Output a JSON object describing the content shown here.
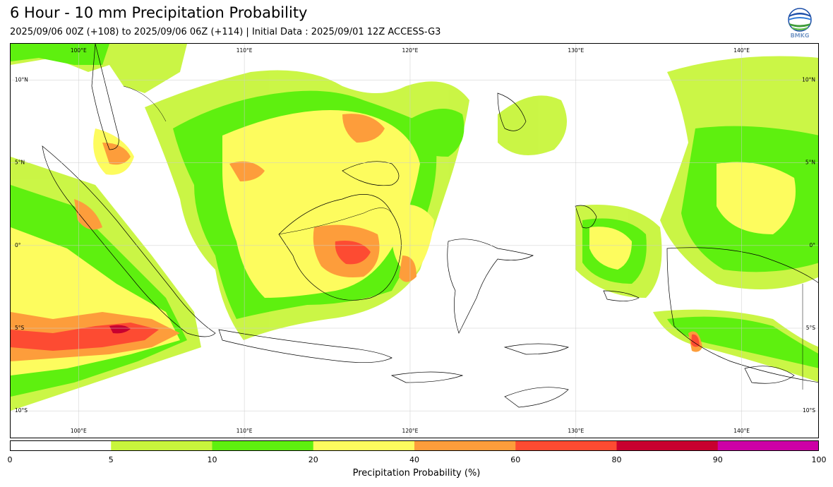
{
  "header": {
    "title": "6 Hour - 10 mm Precipitation Probability",
    "subtitle": "2025/09/06 00Z (+108) to 2025/09/06 06Z (+114) | Initial Data : 2025/09/01 12Z ACCESS-G3"
  },
  "logo": {
    "text": "BMKG",
    "icon": "globe-icon"
  },
  "map": {
    "lon_labels": [
      "100°E",
      "110°E",
      "120°E",
      "130°E",
      "140°E"
    ],
    "lat_labels": [
      "10°N",
      "5°N",
      "0°",
      "5°S",
      "10°S"
    ],
    "lon_range": [
      95.9,
      144.7
    ],
    "lat_range": [
      -11.7,
      12.2
    ],
    "grid": true,
    "projection": "plate carrée"
  },
  "legend": {
    "title": "Precipitation Probability (%)",
    "bounds": [
      0,
      5,
      10,
      20,
      40,
      60,
      80,
      90,
      100
    ],
    "bound_labels": [
      "0",
      "5",
      "10",
      "20",
      "40",
      "60",
      "80",
      "90",
      "100"
    ],
    "colors": [
      "#ffffff",
      "#c8f53c",
      "#5ef00f",
      "#fdfc5e",
      "#fd9d3b",
      "#fd4b32",
      "#c8002f",
      "#cd00a6"
    ]
  }
}
